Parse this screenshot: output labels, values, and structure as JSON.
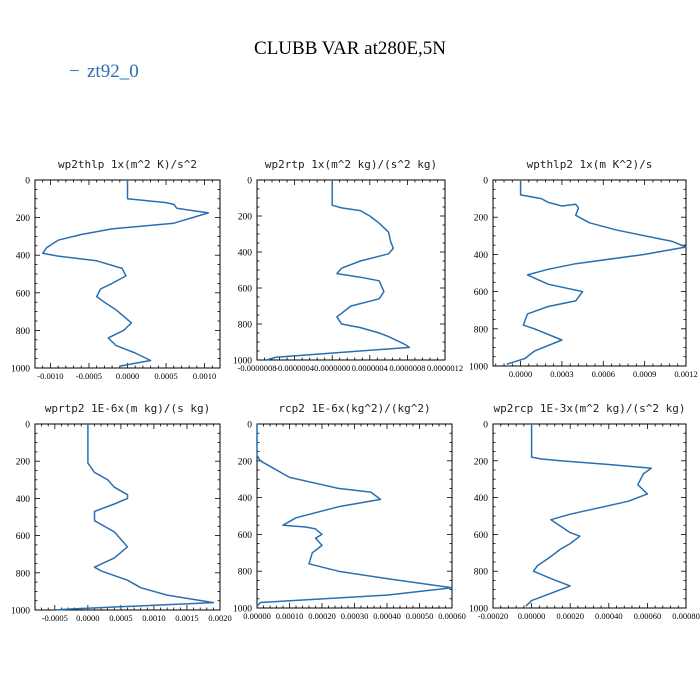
{
  "figure": {
    "title": "CLUBB VAR at280E,5N",
    "legend": [
      {
        "label": "zt92_0",
        "color": "#2a6fb0",
        "marker": "−"
      }
    ]
  },
  "chart_data": [
    {
      "type": "line",
      "title": "wp2thlp   1x(m^2 K)/s^2",
      "series": [
        {
          "name": "zt92_0",
          "x": [
            0,
            0,
            0.0005,
            0.0006,
            0.00064,
            0.0008,
            0.00105,
            0.0006,
            -0.0002,
            -0.0006,
            -0.0009,
            -0.00105,
            -0.0011,
            -0.0009,
            -0.0004,
            -7e-05,
            -2e-05,
            -0.0002,
            -0.00035,
            -0.0004,
            -0.0003,
            -0.00015,
            5e-05,
            -5e-05,
            -0.00025,
            -0.00015,
            0.0001,
            0.0003,
            -0.0001
          ],
          "y": [
            0,
            100,
            120,
            130,
            150,
            160,
            175,
            230,
            260,
            290,
            320,
            360,
            390,
            405,
            430,
            470,
            510,
            550,
            580,
            620,
            650,
            690,
            760,
            800,
            840,
            880,
            920,
            960,
            990
          ]
        }
      ],
      "xlim": [
        -0.0012,
        0.0012
      ],
      "ylim": [
        1000,
        0
      ],
      "xticks": [
        -0.001,
        -0.0005,
        0,
        0.0005,
        0.001
      ],
      "xtick_labels": [
        "-0.0010",
        "-0.0005",
        "0.0000",
        "0.0005",
        "0.0010"
      ],
      "yticks": [
        0,
        200,
        400,
        600,
        800,
        1000
      ],
      "ytick_labels": [
        "0",
        "200",
        "400",
        "600",
        "800",
        "1000"
      ]
    },
    {
      "type": "line",
      "title": "wp2rtp   1x(m^2 kg)/(s^2 kg)",
      "series": [
        {
          "name": "zt92_0",
          "x": [
            0,
            0,
            1e-07,
            3e-07,
            4e-07,
            5e-07,
            6e-07,
            6.2e-07,
            6.5e-07,
            6e-07,
            3e-07,
            1e-07,
            5e-08,
            3e-07,
            5e-07,
            5.5e-07,
            5e-07,
            2e-07,
            5e-08,
            1e-07,
            3e-07,
            5e-07,
            6e-07,
            7.8e-07,
            8.2e-07,
            -6e-07,
            -7e-07
          ],
          "y": [
            0,
            140,
            155,
            170,
            200,
            240,
            290,
            340,
            380,
            410,
            450,
            490,
            520,
            540,
            560,
            620,
            660,
            700,
            760,
            800,
            820,
            850,
            870,
            915,
            930,
            985,
            1000
          ]
        }
      ],
      "xlim": [
        -8e-07,
        1.2e-06
      ],
      "ylim": [
        1000,
        0
      ],
      "xticks": [
        -8e-07,
        -4e-07,
        0,
        4e-07,
        8e-07,
        1.2e-06
      ],
      "xtick_labels": [
        "-0.0000008",
        "-0.0000004",
        "0.0000000",
        "0.0000004",
        "0.0000008",
        "0.0000012"
      ],
      "yticks": [
        0,
        200,
        400,
        600,
        800,
        1000
      ],
      "ytick_labels": [
        "0",
        "200",
        "400",
        "600",
        "800",
        "1000"
      ]
    },
    {
      "type": "line",
      "title": "wpthlp2   1x(m K^2)/s",
      "series": [
        {
          "name": "zt92_0",
          "x": [
            0,
            0,
            0.00015,
            0.0002,
            0.0003,
            0.0004,
            0.00042,
            0.0004,
            0.0005,
            0.0007,
            0.0011,
            0.0012,
            0.0009,
            0.0004,
            0.0002,
            5e-05,
            0.0002,
            0.00045,
            0.0004,
            0.0002,
            5e-05,
            2e-05,
            0.0001,
            0.0003,
            0.0001,
            3e-05,
            -0.0001
          ],
          "y": [
            0,
            80,
            100,
            120,
            140,
            130,
            150,
            190,
            230,
            270,
            330,
            360,
            400,
            450,
            480,
            510,
            560,
            600,
            650,
            680,
            720,
            780,
            800,
            860,
            920,
            960,
            990
          ]
        }
      ],
      "xlim": [
        -0.0002,
        0.0012
      ],
      "ylim": [
        1000,
        0
      ],
      "xticks": [
        0,
        0.0003,
        0.0006,
        0.0009,
        0.0012
      ],
      "xtick_labels": [
        "0.0000",
        "0.0003",
        "0.0006",
        "0.0009",
        "0.0012"
      ],
      "yticks": [
        0,
        200,
        400,
        600,
        800,
        1000
      ],
      "ytick_labels": [
        "0",
        "200",
        "400",
        "600",
        "800",
        "1000"
      ]
    },
    {
      "type": "line",
      "title": "wprtp2   1E-6x(m kg)/(s kg)",
      "series": [
        {
          "name": "zt92_0",
          "x": [
            0,
            0,
            0.0001,
            0.0003,
            0.0004,
            0.0006,
            0.0006,
            0.0004,
            0.0001,
            0.0001,
            0.0004,
            0.0006,
            0.0004,
            0.0001,
            0.0002,
            0.0006,
            0.0008,
            0.0012,
            0.0019,
            -0.0003,
            -0.0005
          ],
          "y": [
            0,
            210,
            260,
            300,
            340,
            380,
            400,
            430,
            470,
            520,
            580,
            660,
            720,
            770,
            790,
            840,
            880,
            920,
            960,
            995,
            1000
          ]
        }
      ],
      "xlim": [
        -0.0008,
        0.002
      ],
      "ylim": [
        1000,
        0
      ],
      "xticks": [
        -0.0005,
        0,
        0.0005,
        0.001,
        0.0015,
        0.002
      ],
      "xtick_labels": [
        "-0.0005",
        "0.0000",
        "0.0005",
        "0.0010",
        "0.0015",
        "0.0020"
      ],
      "yticks": [
        0,
        200,
        400,
        600,
        800,
        1000
      ],
      "ytick_labels": [
        "0",
        "200",
        "400",
        "600",
        "800",
        "1000"
      ]
    },
    {
      "type": "line",
      "title": "rcp2   1E-6x(kg^2)/(kg^2)",
      "series": [
        {
          "name": "zt92_0",
          "x": [
            0,
            0,
            1e-05,
            5e-05,
            0.0001,
            0.0002,
            0.00025,
            0.00035,
            0.00038,
            0.00025,
            0.00012,
            8e-05,
            0.00015,
            0.00018,
            0.0002,
            0.00018,
            0.0002,
            0.00017,
            0.00016,
            0.00025,
            0.0004,
            0.0006,
            0.0004,
            1e-05,
            0
          ],
          "y": [
            0,
            170,
            200,
            240,
            290,
            330,
            350,
            370,
            410,
            450,
            510,
            550,
            560,
            570,
            600,
            620,
            660,
            700,
            760,
            800,
            840,
            890,
            930,
            970,
            990
          ]
        }
      ],
      "xlim": [
        0,
        0.0006
      ],
      "ylim": [
        1000,
        0
      ],
      "xticks": [
        0,
        0.0001,
        0.0002,
        0.0003,
        0.0004,
        0.0005,
        0.0006
      ],
      "xtick_labels": [
        "0.00000",
        "0.00010",
        "0.00020",
        "0.00030",
        "0.00040",
        "0.00050",
        "0.00060"
      ],
      "yticks": [
        0,
        200,
        400,
        600,
        800,
        1000
      ],
      "ytick_labels": [
        "0",
        "200",
        "400",
        "600",
        "800",
        "1000"
      ]
    },
    {
      "type": "line",
      "title": "wp2rcp   1E-3x(m^2 kg)/(s^2 kg)",
      "series": [
        {
          "name": "zt92_0",
          "x": [
            0,
            0,
            5e-05,
            0.00015,
            0.0004,
            0.00062,
            0.00058,
            0.00055,
            0.0006,
            0.0005,
            0.0002,
            0.0001,
            0.0002,
            0.00025,
            0.0002,
            0.00015,
            0.0001,
            3e-05,
            1e-05,
            0.0001,
            0.0002,
            0.0001,
            0,
            -3e-05
          ],
          "y": [
            0,
            180,
            190,
            200,
            220,
            240,
            270,
            330,
            380,
            420,
            490,
            520,
            590,
            610,
            650,
            680,
            720,
            770,
            800,
            840,
            880,
            920,
            960,
            990
          ]
        }
      ],
      "xlim": [
        -0.0002,
        0.0008
      ],
      "ylim": [
        1000,
        0
      ],
      "xticks": [
        -0.0002,
        0,
        0.0002,
        0.0004,
        0.0006,
        0.0008
      ],
      "xtick_labels": [
        "-0.00020",
        "0.00000",
        "0.00020",
        "0.00040",
        "0.00060",
        "0.00080"
      ],
      "yticks": [
        0,
        200,
        400,
        600,
        800,
        1000
      ],
      "ytick_labels": [
        "0",
        "200",
        "400",
        "600",
        "800",
        "1000"
      ]
    }
  ]
}
